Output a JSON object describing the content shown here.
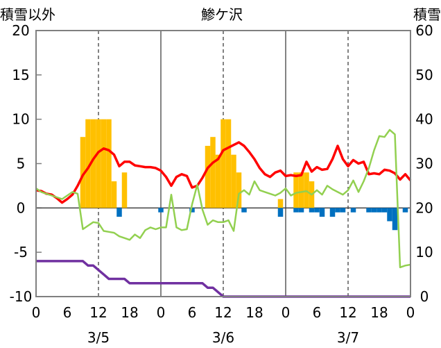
{
  "chart_data": {
    "type": "bar+line",
    "title": "鯵ケ沢",
    "y_left_label": "積雪以外",
    "y_right_label": "積雪",
    "y_left_ticks": [
      "20",
      "15",
      "10",
      "5",
      "0",
      "-5",
      "-10"
    ],
    "y_right_ticks": [
      "60",
      "50",
      "40",
      "30",
      "20",
      "10",
      "0"
    ],
    "ylim_left": [
      -10,
      20
    ],
    "ylim_right": [
      0,
      60
    ],
    "x_range_hours": [
      0,
      72
    ],
    "x_tick_labels": [
      "0",
      "6",
      "12",
      "18",
      "0",
      "6",
      "12",
      "18",
      "0",
      "6",
      "12",
      "18",
      "0"
    ],
    "date_labels": [
      "3/5",
      "3/6",
      "3/7"
    ],
    "grid": "vertical dashed at 12h, solid at day boundaries",
    "colors": {
      "snowfall": "#FFC000",
      "precipitation": "#0070C0",
      "temperature": "#FF0000",
      "wind": "#92D050",
      "snow_depth": "#7030A0"
    },
    "series": [
      {
        "key": "snowfall",
        "type": "bar",
        "axis": "left",
        "hours": [
          9,
          10,
          11,
          12,
          13,
          14,
          15,
          17,
          33,
          34,
          35,
          36,
          37,
          38,
          39,
          47,
          50,
          51,
          52,
          53
        ],
        "values": [
          8,
          10,
          10,
          10,
          10,
          10,
          3,
          4,
          7,
          8,
          6,
          10,
          10,
          6,
          4,
          1,
          4,
          4,
          4,
          3
        ]
      },
      {
        "key": "precipitation",
        "type": "bar",
        "axis": "left",
        "hours": [
          16,
          24,
          30,
          40,
          47,
          50,
          51,
          53,
          54,
          55,
          57,
          58,
          59,
          61,
          64,
          65,
          66,
          67,
          68,
          69,
          71
        ],
        "values": [
          -1,
          -0.5,
          -0.5,
          -0.5,
          -1,
          -0.5,
          -0.5,
          -0.5,
          -0.5,
          -1,
          -1,
          -0.5,
          -0.5,
          -0.5,
          -0.5,
          -0.5,
          -0.5,
          -0.5,
          -1.5,
          -2.5,
          -0.5
        ]
      },
      {
        "key": "temperature",
        "type": "line",
        "axis": "left",
        "hours": [
          0,
          1,
          2,
          3,
          4,
          5,
          6,
          7,
          8,
          9,
          10,
          11,
          12,
          13,
          14,
          15,
          16,
          17,
          18,
          19,
          20,
          21,
          22,
          23,
          24,
          25,
          26,
          27,
          28,
          29,
          30,
          31,
          32,
          33,
          34,
          35,
          36,
          37,
          38,
          39,
          40,
          41,
          42,
          43,
          44,
          45,
          46,
          47,
          48,
          49,
          50,
          51,
          52,
          53,
          54,
          55,
          56,
          57,
          58,
          59,
          60,
          61,
          62,
          63,
          64,
          65,
          66,
          67,
          68,
          69,
          70,
          71,
          72
        ],
        "values": [
          2,
          1.9,
          1.6,
          1.5,
          1.1,
          0.6,
          1,
          1.5,
          2.5,
          3.7,
          4.5,
          5.5,
          6.3,
          6.7,
          6.5,
          6,
          4.7,
          5.2,
          5.2,
          4.8,
          4.7,
          4.6,
          4.6,
          4.5,
          4.2,
          3.5,
          2.5,
          3.5,
          3.8,
          3.6,
          2.3,
          2.5,
          3.4,
          4.5,
          5.1,
          5.5,
          6.5,
          6.8,
          7.1,
          7.4,
          7,
          6.3,
          5.5,
          4.5,
          3.8,
          3.5,
          4,
          4.2,
          3.6,
          3.7,
          3.6,
          3.7,
          5.2,
          4.1,
          4.6,
          4.3,
          4.4,
          5.5,
          7,
          5.5,
          4.7,
          5.4,
          5,
          5.2,
          3.8,
          3.9,
          3.8,
          4.3,
          4.2,
          3.9,
          3.2,
          3.8,
          3.1
        ]
      },
      {
        "key": "wind",
        "type": "line",
        "axis": "left",
        "hours": [
          0,
          1,
          2,
          3,
          4,
          5,
          6,
          7,
          8,
          9,
          10,
          11,
          12,
          13,
          14,
          15,
          16,
          17,
          18,
          19,
          20,
          21,
          22,
          23,
          24,
          25,
          26,
          27,
          28,
          29,
          30,
          31,
          32,
          33,
          34,
          35,
          36,
          37,
          38,
          39,
          40,
          41,
          42,
          43,
          44,
          45,
          46,
          47,
          48,
          49,
          50,
          51,
          52,
          53,
          54,
          55,
          56,
          57,
          58,
          59,
          60,
          61,
          62,
          63,
          64,
          65,
          66,
          67,
          68,
          69,
          70,
          71,
          72
        ],
        "values": [
          2.2,
          1.8,
          1.6,
          1.4,
          1.2,
          1,
          1.4,
          1.8,
          1.6,
          -2.4,
          -2,
          -1.6,
          -1.7,
          -2.6,
          -2.7,
          -2.8,
          -3.2,
          -3.4,
          -3.6,
          -3,
          -3.4,
          -2.5,
          -2.2,
          -2.4,
          -2.2,
          -2.2,
          1.5,
          -2.2,
          -2.5,
          -2.4,
          0.4,
          2.6,
          -0.2,
          -1.9,
          -1.4,
          -1.6,
          -1.6,
          -1.4,
          -2.6,
          1.6,
          2,
          1.5,
          3,
          2,
          1.8,
          1.6,
          1.4,
          1.7,
          2.2,
          1.4,
          1.7,
          1.8,
          1.9,
          1.5,
          2,
          1.5,
          2.5,
          2.1,
          1.8,
          1.5,
          2,
          3.1,
          1.8,
          3,
          4.5,
          6.5,
          8.1,
          8,
          8.8,
          8.3,
          -6.7,
          -6.5,
          -6.4
        ]
      },
      {
        "key": "snow_depth",
        "type": "line",
        "axis": "right",
        "hours": [
          0,
          8,
          9,
          10,
          11,
          12,
          13,
          14,
          15,
          16,
          17,
          18,
          19,
          20,
          21,
          22,
          23,
          24,
          25,
          26,
          27,
          28,
          29,
          30,
          31,
          32,
          33,
          34,
          35,
          36,
          37,
          72
        ],
        "values": [
          8,
          8,
          8,
          7,
          7,
          6,
          5,
          4,
          4,
          4,
          4,
          3,
          3,
          3,
          3,
          3,
          3,
          3,
          3,
          3,
          3,
          3,
          3,
          3,
          3,
          3,
          2,
          2,
          1,
          0,
          0,
          0
        ]
      }
    ]
  }
}
